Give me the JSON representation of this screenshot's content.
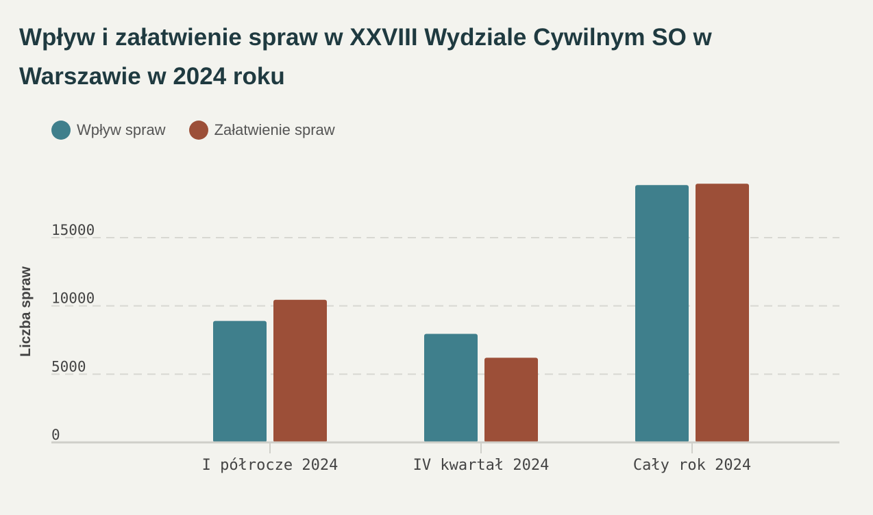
{
  "chart_data": {
    "type": "bar",
    "title": "Wpływ i załatwienie spraw w XXVIII Wydziale Cywilnym SO w Warszawie w 2024 roku",
    "xlabel": "",
    "ylabel": "Liczba spraw",
    "categories": [
      "I półrocze 2024",
      "IV kwartał 2024",
      "Cały rok 2024"
    ],
    "series": [
      {
        "name": "Wpływ spraw",
        "color": "#3f7f8c",
        "values": [
          8900,
          7950,
          18850
        ]
      },
      {
        "name": "Załatwienie spraw",
        "color": "#9c4f38",
        "values": [
          10450,
          6200,
          18950
        ]
      }
    ],
    "yticks": [
      0,
      5000,
      10000,
      15000
    ],
    "ylim": [
      0,
      20000
    ],
    "grid": true,
    "legend": "top-left"
  }
}
